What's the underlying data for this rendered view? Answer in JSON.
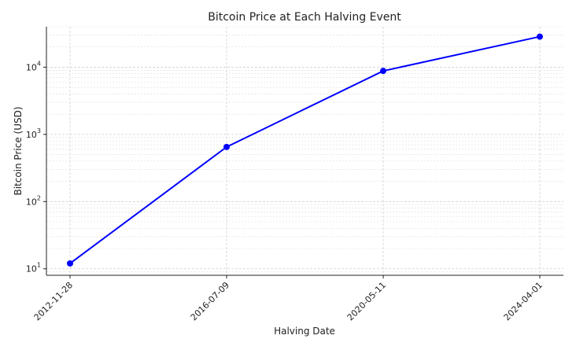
{
  "chart_data": {
    "type": "line",
    "title": "Bitcoin Price at Each Halving Event",
    "xlabel": "Halving Date",
    "ylabel": "Bitcoin Price (USD)",
    "x": [
      "2012-11-28",
      "2016-07-09",
      "2020-05-11",
      "2024-04-01"
    ],
    "series": [
      {
        "values": [
          12,
          650,
          8800,
          28500
        ],
        "color": "#0000ff",
        "marker": "circle"
      }
    ],
    "yscale": "log",
    "ylim": [
      8,
      40000
    ],
    "y_ticks": [
      {
        "base": "10",
        "exp": "1"
      },
      {
        "base": "10",
        "exp": "2"
      },
      {
        "base": "10",
        "exp": "3"
      },
      {
        "base": "10",
        "exp": "4"
      }
    ],
    "grid": true,
    "legend": "none"
  }
}
